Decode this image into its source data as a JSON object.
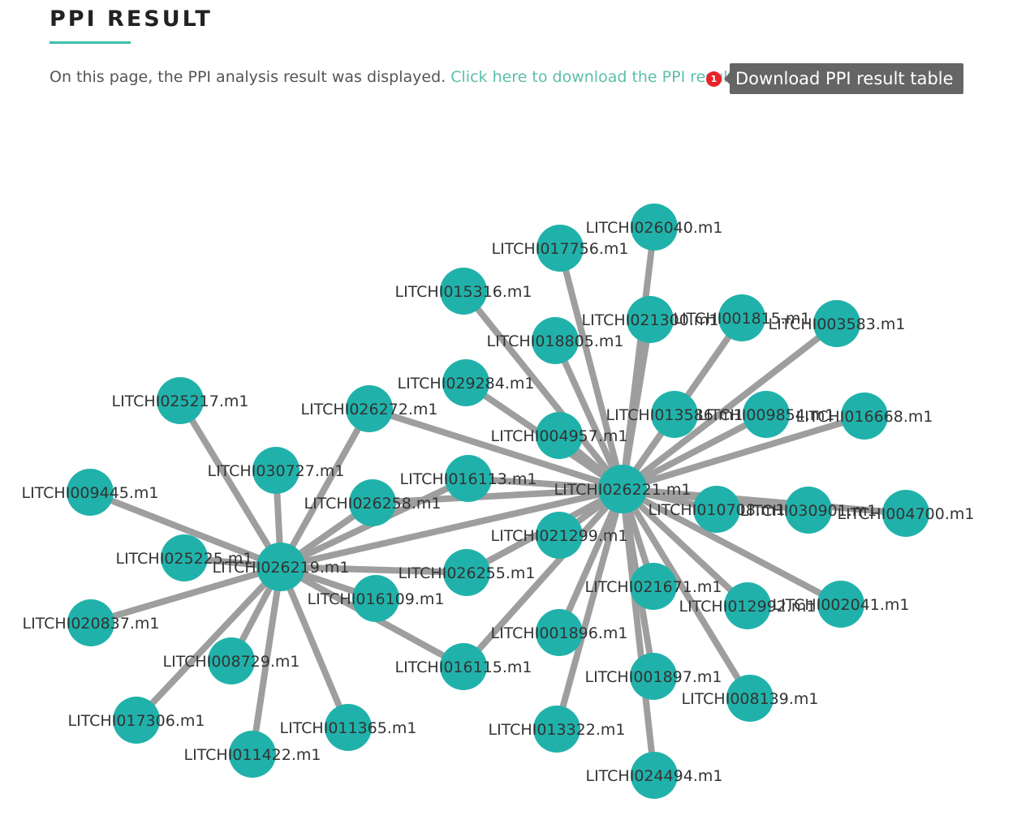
{
  "header": {
    "title": "PPI RESULT",
    "intro_text": "On this page, the PPI analysis result was displayed.",
    "download_link": "Click here to download the PPI result file",
    "badge_count": "1",
    "tooltip": "Download PPI result table"
  },
  "colors": {
    "node": "#20b2aa",
    "edge": "#9e9e9e",
    "accent": "#5cbfa9",
    "badge": "#e8232a"
  },
  "network": {
    "nodes": [
      {
        "id": "LITCHI026221.m1"
      },
      {
        "id": "LITCHI026219.m1"
      },
      {
        "id": "LITCHI026040.m1"
      },
      {
        "id": "LITCHI017756.m1"
      },
      {
        "id": "LITCHI015316.m1"
      },
      {
        "id": "LITCHI021300.m1"
      },
      {
        "id": "LITCHI001815.m1"
      },
      {
        "id": "LITCHI003583.m1"
      },
      {
        "id": "LITCHI018805.m1"
      },
      {
        "id": "LITCHI029284.m1"
      },
      {
        "id": "LITCHI026272.m1"
      },
      {
        "id": "LITCHI013586.m1"
      },
      {
        "id": "LITCHI009854.m1"
      },
      {
        "id": "LITCHI016668.m1"
      },
      {
        "id": "LITCHI004957.m1"
      },
      {
        "id": "LITCHI016113.m1"
      },
      {
        "id": "LITCHI026258.m1"
      },
      {
        "id": "LITCHI010708.m1"
      },
      {
        "id": "LITCHI030901.m1"
      },
      {
        "id": "LITCHI004700.m1"
      },
      {
        "id": "LITCHI021299.m1"
      },
      {
        "id": "LITCHI026255.m1"
      },
      {
        "id": "LITCHI016109.m1"
      },
      {
        "id": "LITCHI021671.m1"
      },
      {
        "id": "LITCHI012992.m1"
      },
      {
        "id": "LITCHI002041.m1"
      },
      {
        "id": "LITCHI001896.m1"
      },
      {
        "id": "LITCHI016115.m1"
      },
      {
        "id": "LITCHI001897.m1"
      },
      {
        "id": "LITCHI008139.m1"
      },
      {
        "id": "LITCHI013322.m1"
      },
      {
        "id": "LITCHI024494.m1"
      },
      {
        "id": "LITCHI025217.m1"
      },
      {
        "id": "LITCHI030727.m1"
      },
      {
        "id": "LITCHI009445.m1"
      },
      {
        "id": "LITCHI025225.m1"
      },
      {
        "id": "LITCHI020837.m1"
      },
      {
        "id": "LITCHI008729.m1"
      },
      {
        "id": "LITCHI017306.m1"
      },
      {
        "id": "LITCHI011365.m1"
      },
      {
        "id": "LITCHI011422.m1"
      }
    ],
    "edges": [
      [
        "LITCHI026221.m1",
        "LITCHI026040.m1"
      ],
      [
        "LITCHI026221.m1",
        "LITCHI017756.m1"
      ],
      [
        "LITCHI026221.m1",
        "LITCHI015316.m1"
      ],
      [
        "LITCHI026221.m1",
        "LITCHI021300.m1"
      ],
      [
        "LITCHI026221.m1",
        "LITCHI001815.m1"
      ],
      [
        "LITCHI026221.m1",
        "LITCHI003583.m1"
      ],
      [
        "LITCHI026221.m1",
        "LITCHI018805.m1"
      ],
      [
        "LITCHI026221.m1",
        "LITCHI029284.m1"
      ],
      [
        "LITCHI026221.m1",
        "LITCHI026272.m1"
      ],
      [
        "LITCHI026221.m1",
        "LITCHI013586.m1"
      ],
      [
        "LITCHI026221.m1",
        "LITCHI009854.m1"
      ],
      [
        "LITCHI026221.m1",
        "LITCHI016668.m1"
      ],
      [
        "LITCHI026221.m1",
        "LITCHI004957.m1"
      ],
      [
        "LITCHI026221.m1",
        "LITCHI016113.m1"
      ],
      [
        "LITCHI026221.m1",
        "LITCHI026258.m1"
      ],
      [
        "LITCHI026221.m1",
        "LITCHI010708.m1"
      ],
      [
        "LITCHI026221.m1",
        "LITCHI030901.m1"
      ],
      [
        "LITCHI026221.m1",
        "LITCHI004700.m1"
      ],
      [
        "LITCHI026221.m1",
        "LITCHI021299.m1"
      ],
      [
        "LITCHI026221.m1",
        "LITCHI026255.m1"
      ],
      [
        "LITCHI026221.m1",
        "LITCHI021671.m1"
      ],
      [
        "LITCHI026221.m1",
        "LITCHI012992.m1"
      ],
      [
        "LITCHI026221.m1",
        "LITCHI002041.m1"
      ],
      [
        "LITCHI026221.m1",
        "LITCHI001896.m1"
      ],
      [
        "LITCHI026221.m1",
        "LITCHI016115.m1"
      ],
      [
        "LITCHI026221.m1",
        "LITCHI001897.m1"
      ],
      [
        "LITCHI026221.m1",
        "LITCHI008139.m1"
      ],
      [
        "LITCHI026221.m1",
        "LITCHI013322.m1"
      ],
      [
        "LITCHI026221.m1",
        "LITCHI024494.m1"
      ],
      [
        "LITCHI026221.m1",
        "LITCHI026219.m1"
      ],
      [
        "LITCHI026219.m1",
        "LITCHI025217.m1"
      ],
      [
        "LITCHI026219.m1",
        "LITCHI030727.m1"
      ],
      [
        "LITCHI026219.m1",
        "LITCHI009445.m1"
      ],
      [
        "LITCHI026219.m1",
        "LITCHI025225.m1"
      ],
      [
        "LITCHI026219.m1",
        "LITCHI020837.m1"
      ],
      [
        "LITCHI026219.m1",
        "LITCHI008729.m1"
      ],
      [
        "LITCHI026219.m1",
        "LITCHI017306.m1"
      ],
      [
        "LITCHI026219.m1",
        "LITCHI011422.m1"
      ],
      [
        "LITCHI026219.m1",
        "LITCHI011365.m1"
      ],
      [
        "LITCHI026219.m1",
        "LITCHI026272.m1"
      ],
      [
        "LITCHI026219.m1",
        "LITCHI026258.m1"
      ],
      [
        "LITCHI026219.m1",
        "LITCHI016109.m1"
      ],
      [
        "LITCHI026219.m1",
        "LITCHI026255.m1"
      ],
      [
        "LITCHI026219.m1",
        "LITCHI016115.m1"
      ],
      [
        "LITCHI026219.m1",
        "LITCHI016113.m1"
      ]
    ]
  }
}
